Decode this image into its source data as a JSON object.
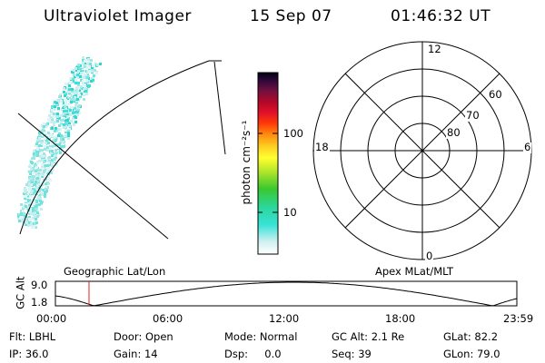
{
  "header": {
    "title": "Ultraviolet Imager",
    "date": "15 Sep 07",
    "time": "01:46:32 UT"
  },
  "colorbar": {
    "label": "photon cm⁻²s⁻¹",
    "ticks": [
      "100",
      "10"
    ]
  },
  "polar": {
    "mlt_labels": [
      "12",
      "18",
      "6",
      "0"
    ],
    "lat_labels": [
      "60",
      "70",
      "80"
    ]
  },
  "timeline": {
    "left_title": "Geographic Lat/Lon",
    "right_title": "Apex  MLat/MLT",
    "ylabel": "GC Alt",
    "ymax": "9.0",
    "ymin": "1.8",
    "xticks": [
      "00:00",
      "06:00",
      "12:00",
      "18:00",
      "23:59"
    ]
  },
  "info": {
    "row1": [
      "Flt: LBHL",
      "Door: Open",
      "Mode: Normal",
      "GC Alt: 2.1 Re",
      "GLat: 82.2"
    ],
    "row2": [
      "IP: 36.0",
      "Gain: 14",
      "Dsp:     0.0",
      "Seq: 39",
      "GLon: 79.0"
    ]
  },
  "colors": {
    "aurora": "#3fe0d8",
    "marker": "#e02020"
  }
}
